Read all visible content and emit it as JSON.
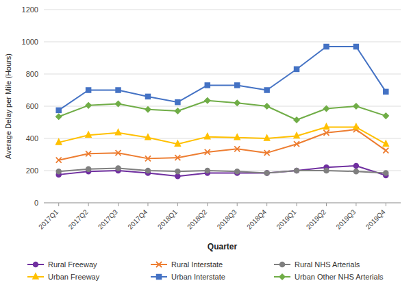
{
  "chart_data": {
    "type": "line",
    "categories": [
      "2017Q1",
      "2017Q2",
      "2017Q3",
      "2017Q4",
      "2018Q1",
      "2018Q2",
      "2018Q3",
      "2018Q4",
      "2019Q1",
      "2019Q2",
      "2019Q3",
      "2019Q4"
    ],
    "series": [
      {
        "name": "Rural Freeway",
        "color": "#7030a0",
        "marker": "circle",
        "values": [
          175,
          195,
          200,
          185,
          165,
          185,
          185,
          185,
          200,
          220,
          230,
          170
        ]
      },
      {
        "name": "Rural Interstate",
        "color": "#ed7d31",
        "marker": "x",
        "values": [
          265,
          305,
          310,
          275,
          280,
          315,
          335,
          310,
          365,
          435,
          455,
          325
        ]
      },
      {
        "name": "Rural NHS Arterials",
        "color": "#7f7f7f",
        "marker": "circle",
        "values": [
          195,
          210,
          215,
          200,
          195,
          200,
          195,
          185,
          200,
          200,
          195,
          185
        ]
      },
      {
        "name": "Urban Freeway",
        "color": "#ffc000",
        "marker": "triangle",
        "values": [
          375,
          420,
          435,
          405,
          365,
          410,
          405,
          400,
          415,
          470,
          470,
          365
        ]
      },
      {
        "name": "Urban Interstate",
        "color": "#4472c4",
        "marker": "square",
        "values": [
          575,
          700,
          700,
          660,
          625,
          730,
          730,
          700,
          830,
          970,
          970,
          690
        ]
      },
      {
        "name": "Urban Other NHS Arterials",
        "color": "#70ad47",
        "marker": "diamond",
        "values": [
          535,
          605,
          615,
          580,
          570,
          635,
          620,
          600,
          515,
          585,
          600,
          540
        ]
      }
    ],
    "xlabel": "Quarter",
    "ylabel": "Average Delay per Mile (Hours)",
    "ylim": [
      0,
      1200
    ],
    "yticks": [
      0,
      200,
      400,
      600,
      800,
      1000,
      1200
    ],
    "grid": true,
    "legend": "bottom"
  }
}
